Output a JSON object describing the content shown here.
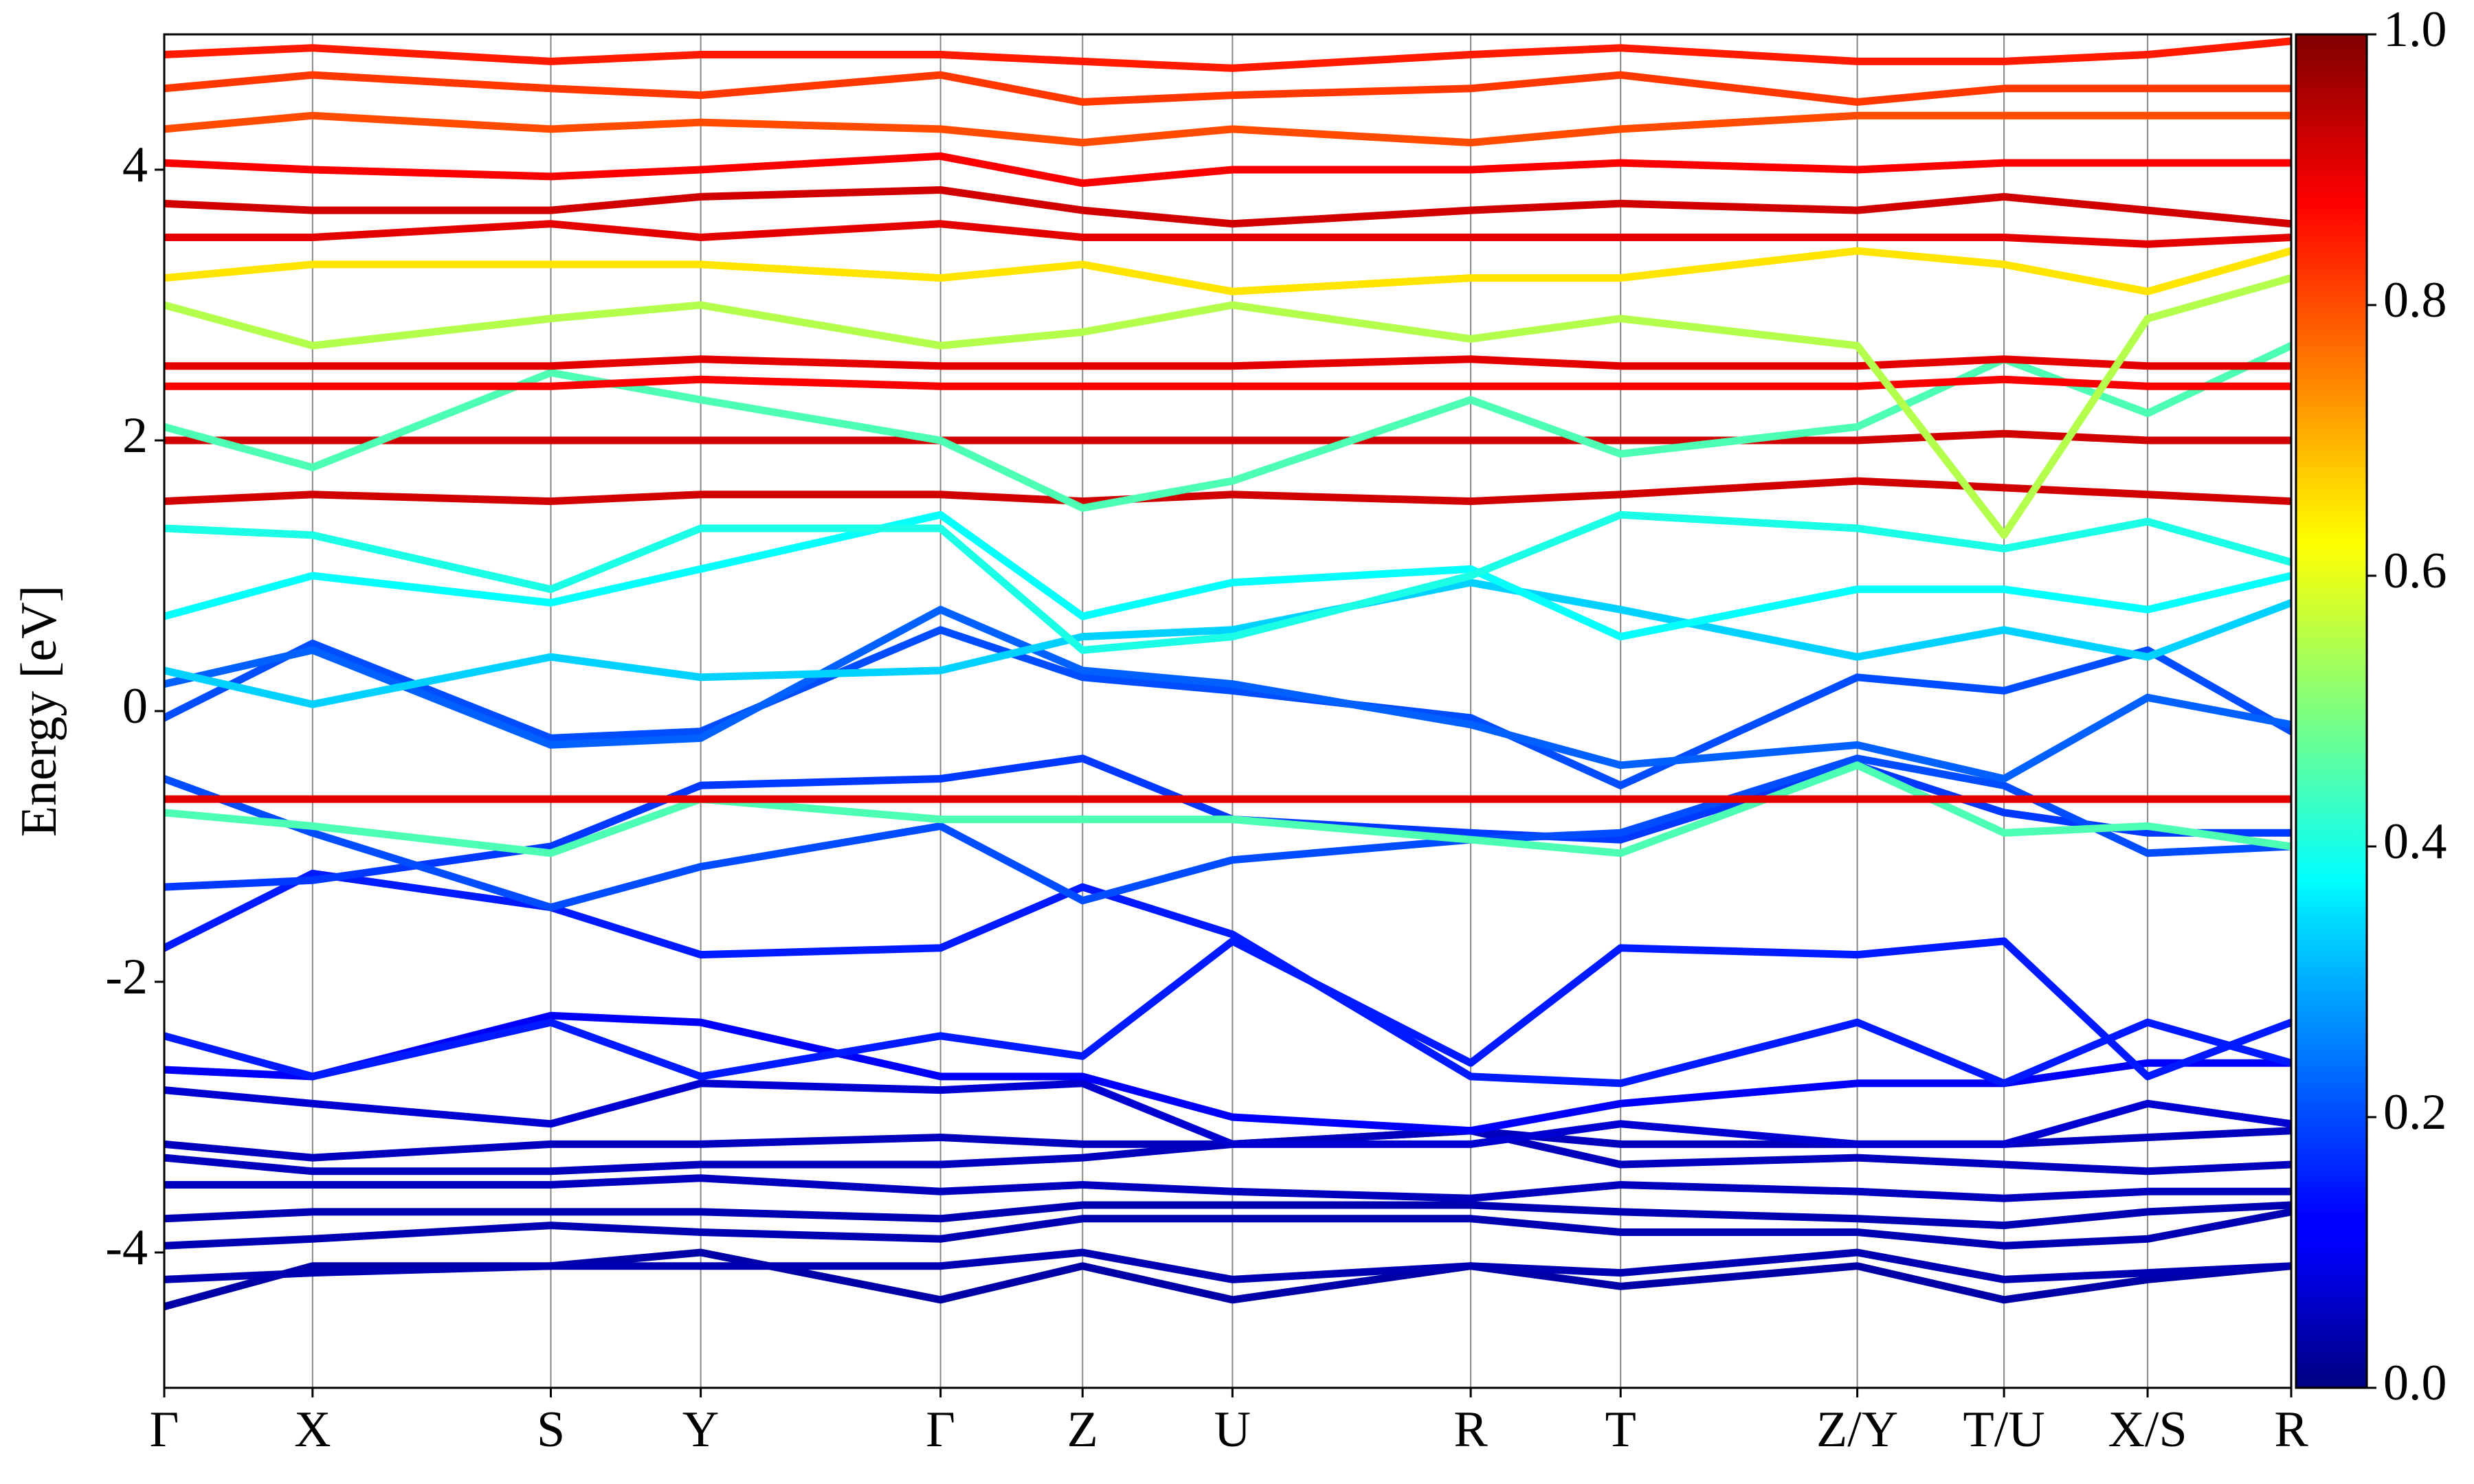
{
  "chart_data": {
    "type": "band-structure",
    "y_label": "Energy [eV]",
    "x": [
      0,
      0.94,
      2.45,
      3.4,
      4.92,
      5.82,
      6.77,
      8.28,
      9.23,
      10.73,
      11.66,
      12.57,
      13.48
    ],
    "xlim": [
      0,
      13.48
    ],
    "xticks": [
      {
        "value": 0,
        "label": "Γ"
      },
      {
        "value": 0.94,
        "label": "X"
      },
      {
        "value": 2.45,
        "label": "S"
      },
      {
        "value": 3.4,
        "label": "Y"
      },
      {
        "value": 4.92,
        "label": "Γ"
      },
      {
        "value": 5.82,
        "label": "Z"
      },
      {
        "value": 6.77,
        "label": "U"
      },
      {
        "value": 8.28,
        "label": "R"
      },
      {
        "value": 9.23,
        "label": "T"
      },
      {
        "value": 10.73,
        "label": "Z/Y"
      },
      {
        "value": 11.66,
        "label": "T/U"
      },
      {
        "value": 12.57,
        "label": "X/S"
      },
      {
        "value": 13.48,
        "label": "R"
      }
    ],
    "ylim": [
      -5,
      5
    ],
    "yticks": [
      -4,
      -2,
      0,
      2,
      4
    ],
    "grid": true,
    "colormap": "jet",
    "colorbar": {
      "lim": [
        0,
        1
      ],
      "ticks": [
        {
          "value": 0,
          "label": "0.0"
        },
        {
          "value": 0.2,
          "label": "0.2"
        },
        {
          "value": 0.4,
          "label": "0.4"
        },
        {
          "value": 0.6,
          "label": "0.6"
        },
        {
          "value": 0.8,
          "label": "0.8"
        },
        {
          "value": 1,
          "label": "1.0"
        }
      ]
    },
    "bands": [
      {
        "weight": 0.04,
        "values": [
          -4.4,
          -4.1,
          -4.1,
          -4.0,
          -4.35,
          -4.1,
          -4.35,
          -4.1,
          -4.25,
          -4.1,
          -4.35,
          -4.2,
          -4.1
        ]
      },
      {
        "weight": 0.05,
        "values": [
          -4.2,
          -4.15,
          -4.1,
          -4.1,
          -4.1,
          -4.0,
          -4.2,
          -4.1,
          -4.15,
          -4.0,
          -4.2,
          -4.15,
          -4.1
        ]
      },
      {
        "weight": 0.05,
        "values": [
          -3.95,
          -3.9,
          -3.8,
          -3.85,
          -3.9,
          -3.75,
          -3.75,
          -3.75,
          -3.85,
          -3.85,
          -3.95,
          -3.9,
          -3.7
        ]
      },
      {
        "weight": 0.05,
        "values": [
          -3.75,
          -3.7,
          -3.7,
          -3.7,
          -3.75,
          -3.65,
          -3.65,
          -3.65,
          -3.7,
          -3.75,
          -3.8,
          -3.7,
          -3.65
        ]
      },
      {
        "weight": 0.06,
        "values": [
          -3.5,
          -3.5,
          -3.5,
          -3.45,
          -3.55,
          -3.5,
          -3.55,
          -3.6,
          -3.5,
          -3.55,
          -3.6,
          -3.55,
          -3.55
        ]
      },
      {
        "weight": 0.06,
        "values": [
          -3.3,
          -3.4,
          -3.4,
          -3.35,
          -3.35,
          -3.3,
          -3.2,
          -3.1,
          -3.35,
          -3.3,
          -3.35,
          -3.4,
          -3.35
        ]
      },
      {
        "weight": 0.06,
        "values": [
          -3.2,
          -3.3,
          -3.2,
          -3.2,
          -3.15,
          -3.2,
          -3.2,
          -3.1,
          -3.2,
          -3.2,
          -3.2,
          -3.15,
          -3.1
        ]
      },
      {
        "weight": 0.08,
        "values": [
          -2.8,
          -2.9,
          -3.05,
          -2.75,
          -2.8,
          -2.75,
          -3.2,
          -3.2,
          -3.05,
          -3.2,
          -3.2,
          -2.9,
          -3.05
        ]
      },
      {
        "weight": 0.12,
        "values": [
          -2.65,
          -2.7,
          -2.25,
          -2.3,
          -2.7,
          -2.7,
          -3.0,
          -3.1,
          -2.9,
          -2.75,
          -2.75,
          -2.6,
          -2.6
        ]
      },
      {
        "weight": 0.15,
        "values": [
          -2.4,
          -2.7,
          -2.3,
          -2.7,
          -2.4,
          -2.55,
          -1.7,
          -2.6,
          -1.75,
          -1.8,
          -1.7,
          -2.7,
          -2.3
        ]
      },
      {
        "weight": 0.15,
        "values": [
          -1.75,
          -1.2,
          -1.45,
          -1.8,
          -1.75,
          -1.3,
          -1.65,
          -2.7,
          -2.75,
          -2.3,
          -2.75,
          -2.3,
          -2.6
        ]
      },
      {
        "weight": 0.18,
        "values": [
          -1.3,
          -1.25,
          -1.0,
          -0.55,
          -0.5,
          -0.35,
          -0.8,
          -0.9,
          -0.95,
          -0.4,
          -0.75,
          -0.9,
          -0.9
        ]
      },
      {
        "weight": 0.2,
        "values": [
          -0.5,
          -0.9,
          -1.45,
          -1.15,
          -0.85,
          -1.4,
          -1.1,
          -0.95,
          -0.9,
          -0.35,
          -0.55,
          -1.05,
          -1.0
        ]
      },
      {
        "weight": 0.2,
        "values": [
          -0.05,
          0.5,
          -0.2,
          -0.15,
          0.6,
          0.25,
          0.15,
          -0.05,
          -0.55,
          0.25,
          0.15,
          0.45,
          -0.15
        ]
      },
      {
        "weight": 0.22,
        "values": [
          0.2,
          0.45,
          -0.25,
          -0.2,
          0.75,
          0.3,
          0.2,
          -0.1,
          -0.4,
          -0.25,
          -0.5,
          0.1,
          -0.1
        ]
      },
      {
        "weight": 0.33,
        "values": [
          0.3,
          0.05,
          0.4,
          0.25,
          0.3,
          0.55,
          0.6,
          0.95,
          0.75,
          0.4,
          0.6,
          0.4,
          0.8
        ]
      },
      {
        "weight": 0.38,
        "values": [
          0.7,
          1.0,
          0.8,
          1.05,
          1.45,
          0.7,
          0.95,
          1.05,
          0.55,
          0.9,
          0.9,
          0.75,
          1.0
        ]
      },
      {
        "weight": 0.45,
        "values": [
          -0.75,
          -0.85,
          -1.05,
          -0.65,
          -0.8,
          -0.8,
          -0.8,
          -0.95,
          -1.05,
          -0.4,
          -0.9,
          -0.85,
          -1.0
        ]
      },
      {
        "weight": 0.9,
        "values": [
          -0.65,
          -0.65,
          -0.65,
          -0.65,
          -0.65,
          -0.65,
          -0.65,
          -0.65,
          -0.65,
          -0.65,
          -0.65,
          -0.65,
          -0.65
        ]
      },
      {
        "weight": 0.4,
        "values": [
          1.35,
          1.3,
          0.9,
          1.35,
          1.35,
          0.45,
          0.55,
          1.0,
          1.45,
          1.35,
          1.2,
          1.4,
          1.1
        ]
      },
      {
        "weight": 0.92,
        "values": [
          1.55,
          1.6,
          1.55,
          1.6,
          1.6,
          1.55,
          1.6,
          1.55,
          1.6,
          1.7,
          1.65,
          1.6,
          1.55
        ]
      },
      {
        "weight": 0.92,
        "values": [
          2.0,
          2.0,
          2.0,
          2.0,
          2.0,
          2.0,
          2.0,
          2.0,
          2.0,
          2.0,
          2.05,
          2.0,
          2.0
        ]
      },
      {
        "weight": 0.45,
        "values": [
          2.1,
          1.8,
          2.5,
          2.3,
          2.0,
          1.5,
          1.7,
          2.3,
          1.9,
          2.1,
          2.6,
          2.2,
          2.7
        ]
      },
      {
        "weight": 0.88,
        "values": [
          2.4,
          2.4,
          2.4,
          2.45,
          2.4,
          2.4,
          2.4,
          2.4,
          2.4,
          2.4,
          2.45,
          2.4,
          2.4
        ]
      },
      {
        "weight": 0.9,
        "values": [
          2.55,
          2.55,
          2.55,
          2.6,
          2.55,
          2.55,
          2.55,
          2.6,
          2.55,
          2.55,
          2.6,
          2.55,
          2.55
        ]
      },
      {
        "weight": 0.55,
        "values": [
          3.0,
          2.7,
          2.9,
          3.0,
          2.7,
          2.8,
          3.0,
          2.75,
          2.9,
          2.7,
          1.3,
          2.9,
          3.2
        ]
      },
      {
        "weight": 0.65,
        "values": [
          3.2,
          3.3,
          3.3,
          3.3,
          3.2,
          3.3,
          3.1,
          3.2,
          3.2,
          3.4,
          3.3,
          3.1,
          3.4
        ]
      },
      {
        "weight": 0.9,
        "values": [
          3.5,
          3.5,
          3.6,
          3.5,
          3.6,
          3.5,
          3.5,
          3.5,
          3.5,
          3.5,
          3.5,
          3.45,
          3.5
        ]
      },
      {
        "weight": 0.92,
        "values": [
          3.75,
          3.7,
          3.7,
          3.8,
          3.85,
          3.7,
          3.6,
          3.7,
          3.75,
          3.7,
          3.8,
          3.7,
          3.6
        ]
      },
      {
        "weight": 0.88,
        "values": [
          4.05,
          4.0,
          3.95,
          4.0,
          4.1,
          3.9,
          4.0,
          4.0,
          4.05,
          4.0,
          4.05,
          4.05,
          4.05
        ]
      },
      {
        "weight": 0.8,
        "values": [
          4.3,
          4.4,
          4.3,
          4.35,
          4.3,
          4.2,
          4.3,
          4.2,
          4.3,
          4.4,
          4.4,
          4.4,
          4.4
        ]
      },
      {
        "weight": 0.82,
        "values": [
          4.6,
          4.7,
          4.6,
          4.55,
          4.7,
          4.5,
          4.55,
          4.6,
          4.7,
          4.5,
          4.6,
          4.6,
          4.6
        ]
      },
      {
        "weight": 0.85,
        "values": [
          4.85,
          4.9,
          4.8,
          4.85,
          4.85,
          4.8,
          4.75,
          4.85,
          4.9,
          4.8,
          4.8,
          4.85,
          4.95
        ]
      }
    ]
  }
}
